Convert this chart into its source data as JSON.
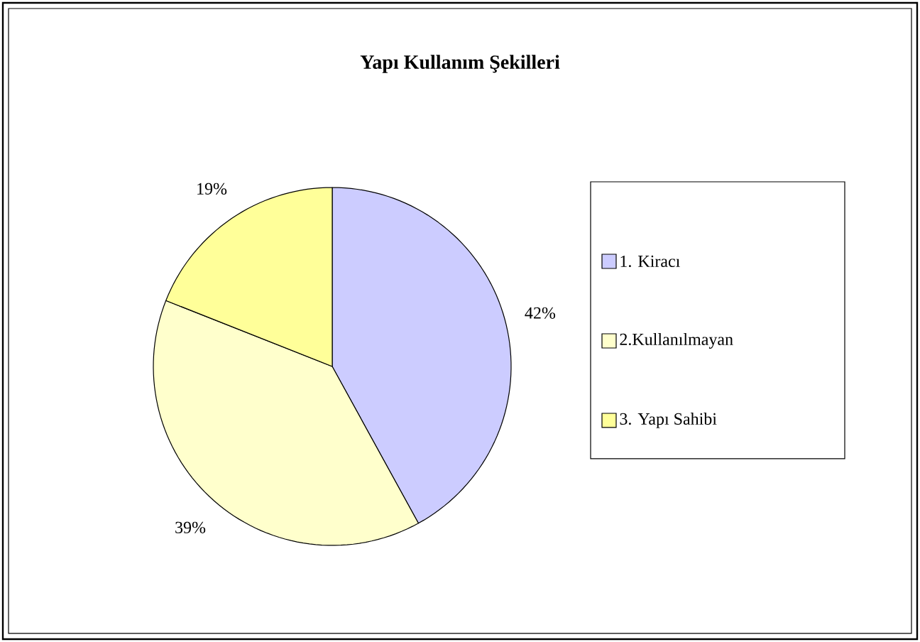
{
  "chart_data": {
    "type": "pie",
    "title": "Yapı Kullanım Şekilleri",
    "categories": [
      "1. Kiracı",
      "2.Kullanılmayan",
      "3. Yapı Sahibi"
    ],
    "values": [
      42,
      39,
      19
    ],
    "value_labels": [
      "42%",
      "39%",
      "19%"
    ],
    "colors": [
      "#ccccff",
      "#ffffcc",
      "#ffff99"
    ],
    "legend": "right"
  }
}
